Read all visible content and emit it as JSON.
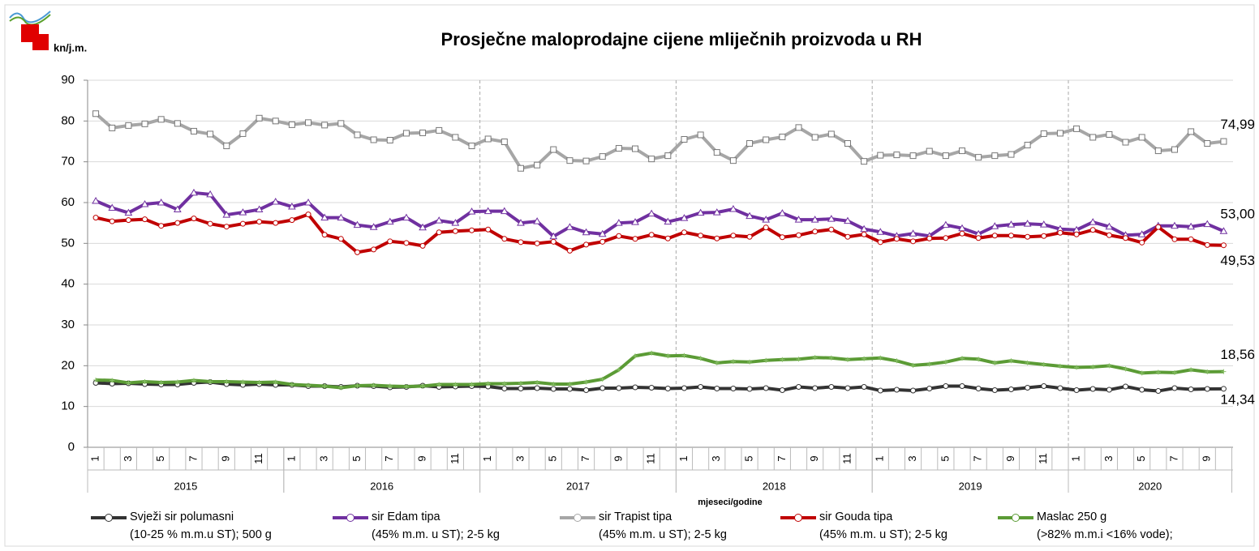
{
  "chart_data": {
    "type": "line",
    "title": "Prosječne maloprodajne cijene mliječnih proizvoda u RH",
    "y_label": "kn/j.m.",
    "x_label": "mjeseci/godine",
    "years": [
      "2015",
      "2016",
      "2017",
      "2018",
      "2019",
      "2020"
    ],
    "categories": [
      "1",
      null,
      "3",
      null,
      "5",
      null,
      "7",
      null,
      "9",
      null,
      "11",
      null,
      "1",
      null,
      "3",
      null,
      "5",
      null,
      "7",
      null,
      "9",
      null,
      "11",
      null,
      "1",
      null,
      "3",
      null,
      "5",
      null,
      "7",
      null,
      "9",
      null,
      "11",
      null,
      "1",
      null,
      "3",
      null,
      "5",
      null,
      "7",
      null,
      "9",
      null,
      "11",
      null,
      "1",
      null,
      "3",
      null,
      "5",
      null,
      "7",
      null,
      "9",
      null,
      "11",
      null,
      "1",
      null,
      "3",
      null,
      "5",
      null,
      "7",
      null,
      "9",
      null
    ],
    "ylim": [
      0,
      90
    ],
    "yticks": [
      0,
      10,
      20,
      30,
      40,
      50,
      60,
      70,
      80,
      90
    ],
    "grid": true,
    "series": [
      {
        "name": "Svježi sir  polumasni\n(10-25 % m.m.u ST); 500 g",
        "color": "#333333",
        "marker": "circle",
        "values": [
          15.8,
          15.6,
          15.7,
          15.5,
          15.4,
          15.4,
          15.8,
          16.0,
          15.5,
          15.3,
          15.5,
          15.3,
          15.3,
          15.0,
          15.0,
          14.8,
          15.1,
          15.0,
          14.7,
          14.8,
          15.1,
          14.8,
          14.9,
          15.0,
          14.9,
          14.4,
          14.4,
          14.5,
          14.3,
          14.3,
          14.0,
          14.5,
          14.5,
          14.7,
          14.6,
          14.4,
          14.5,
          14.8,
          14.4,
          14.4,
          14.3,
          14.5,
          14.0,
          14.8,
          14.5,
          14.8,
          14.5,
          14.8,
          13.9,
          14.1,
          13.9,
          14.4,
          15.0,
          15.0,
          14.4,
          14.0,
          14.2,
          14.6,
          15.0,
          14.5,
          14.0,
          14.3,
          14.1,
          14.9,
          14.1,
          13.8,
          14.5,
          14.2,
          14.3,
          14.34
        ],
        "value_labels": {
          "69": "14,34"
        }
      },
      {
        "name": "sir Edam tipa\n(45% m.m. u ST); 2-5 kg",
        "color": "#7030a0",
        "marker": "triangle",
        "values": [
          60.4,
          58.7,
          57.5,
          59.6,
          60.0,
          58.3,
          62.4,
          62.0,
          57.0,
          57.6,
          58.3,
          60.2,
          59.0,
          60.0,
          56.3,
          56.3,
          54.5,
          54.0,
          55.3,
          56.3,
          53.9,
          55.6,
          55.0,
          57.8,
          57.9,
          57.9,
          55.0,
          55.4,
          51.7,
          54.0,
          52.7,
          52.3,
          55.0,
          55.2,
          57.3,
          55.3,
          56.2,
          57.5,
          57.6,
          58.4,
          56.7,
          55.8,
          57.4,
          55.8,
          55.8,
          56.0,
          55.5,
          53.5,
          52.8,
          51.8,
          52.4,
          51.8,
          54.5,
          53.7,
          52.3,
          54.2,
          54.6,
          54.8,
          54.6,
          53.5,
          53.3,
          55.2,
          54.1,
          52.0,
          52.2,
          54.3,
          54.3,
          54.1,
          54.7,
          53.0
        ],
        "value_labels": {
          "69": "53,00"
        }
      },
      {
        "name": "sir Trapist tipa\n(45% m.m. u ST); 2-5 kg",
        "color": "#a6a6a6",
        "marker": "square",
        "values": [
          81.8,
          78.3,
          78.9,
          79.3,
          80.4,
          79.4,
          77.5,
          76.8,
          73.9,
          76.9,
          80.7,
          80.0,
          79.1,
          79.6,
          79.0,
          79.4,
          76.6,
          75.4,
          75.3,
          77.0,
          77.1,
          77.7,
          76.0,
          73.9,
          75.6,
          74.9,
          68.4,
          69.2,
          73.0,
          70.3,
          70.2,
          71.3,
          73.3,
          73.2,
          70.7,
          71.5,
          75.5,
          76.6,
          72.3,
          70.3,
          74.5,
          75.4,
          76.1,
          78.4,
          76.0,
          76.8,
          74.5,
          70.1,
          71.6,
          71.7,
          71.5,
          72.6,
          71.5,
          72.7,
          71.1,
          71.5,
          71.8,
          74.1,
          76.9,
          77.0,
          78.1,
          76.0,
          76.7,
          74.8,
          76.0,
          72.7,
          73.0,
          77.4,
          74.5,
          74.99
        ],
        "value_labels": {
          "69": "74,99"
        }
      },
      {
        "name": "sir Gouda tipa\n(45% m.m. u ST); 2-5 kg",
        "color": "#c00000",
        "marker": "circle",
        "values": [
          56.3,
          55.4,
          55.7,
          55.9,
          54.3,
          55.0,
          56.1,
          54.8,
          54.1,
          54.8,
          55.3,
          55.0,
          55.7,
          57.1,
          52.1,
          51.1,
          47.8,
          48.5,
          50.5,
          50.1,
          49.4,
          52.7,
          53.0,
          53.2,
          53.4,
          51.1,
          50.3,
          50.0,
          50.4,
          48.2,
          49.7,
          50.4,
          51.8,
          51.1,
          52.1,
          51.2,
          52.7,
          51.9,
          51.2,
          51.9,
          51.6,
          53.9,
          51.5,
          52.0,
          52.9,
          53.4,
          51.6,
          52.2,
          50.3,
          51.1,
          50.5,
          51.2,
          51.3,
          52.4,
          51.3,
          51.9,
          51.9,
          51.6,
          51.8,
          52.6,
          52.2,
          53.3,
          52.0,
          51.3,
          50.2,
          54.0,
          51.0,
          51.0,
          49.6,
          49.53
        ],
        "value_labels": {
          "69": "49,53"
        }
      },
      {
        "name": "Maslac 250 g\n(>82% m.m.i <16% vode);",
        "color": "#5b9b35",
        "marker": "cross",
        "values": [
          16.5,
          16.4,
          15.8,
          16.1,
          15.9,
          16.0,
          16.4,
          16.1,
          16.1,
          16.0,
          15.9,
          16.0,
          15.4,
          15.2,
          15.0,
          14.6,
          15.1,
          15.2,
          15.0,
          14.9,
          15.0,
          15.4,
          15.4,
          15.4,
          15.6,
          15.6,
          15.7,
          15.9,
          15.5,
          15.5,
          16.0,
          16.7,
          19.0,
          22.4,
          23.1,
          22.4,
          22.5,
          21.8,
          20.7,
          21.0,
          20.9,
          21.3,
          21.5,
          21.6,
          22.0,
          21.9,
          21.5,
          21.7,
          21.9,
          21.2,
          20.1,
          20.4,
          20.9,
          21.8,
          21.6,
          20.7,
          21.2,
          20.7,
          20.3,
          19.9,
          19.6,
          19.7,
          20.0,
          19.2,
          18.2,
          18.4,
          18.3,
          19.0,
          18.5,
          18.56
        ],
        "value_labels": {
          "69": "18,56"
        }
      }
    ]
  }
}
